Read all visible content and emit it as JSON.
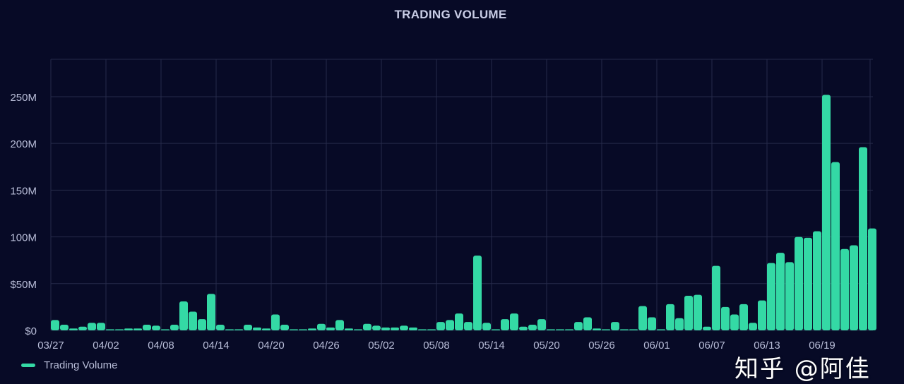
{
  "chart_data": {
    "type": "bar",
    "title": "TRADING VOLUME",
    "xlabel": "",
    "ylabel": "",
    "start_date": "03/27",
    "x_tick_labels": [
      "03/27",
      "04/02",
      "04/08",
      "04/14",
      "04/20",
      "04/26",
      "05/02",
      "05/08",
      "05/14",
      "05/20",
      "05/26",
      "06/01",
      "06/07",
      "06/13",
      "06/19"
    ],
    "y_tick_labels": [
      "$0",
      "$50M",
      "100M",
      "150M",
      "200M",
      "250M"
    ],
    "y_tick_values": [
      0,
      50,
      100,
      150,
      200,
      250
    ],
    "ylim": [
      0,
      290
    ],
    "grid": true,
    "legend_position": "bottom-left",
    "series": [
      {
        "name": "Trading Volume",
        "color": "#34d9a5",
        "unit": "M",
        "values": [
          11,
          6,
          2,
          4,
          8,
          8,
          0,
          1,
          2,
          2,
          6,
          5,
          1,
          6,
          31,
          20,
          12,
          39,
          6,
          0,
          0,
          6,
          3,
          2,
          17,
          6,
          0,
          0,
          2,
          7,
          3,
          11,
          2,
          1,
          7,
          5,
          3,
          3,
          5,
          3,
          0,
          0,
          9,
          11,
          18,
          9,
          80,
          8,
          0,
          12,
          18,
          4,
          6,
          12,
          1,
          0,
          0,
          9,
          14,
          2,
          0,
          9,
          0,
          0,
          26,
          14,
          0,
          28,
          13,
          37,
          38,
          4,
          69,
          25,
          17,
          28,
          8,
          32,
          72,
          83,
          73,
          100,
          99,
          106,
          252,
          180,
          87,
          91,
          196,
          109
        ]
      }
    ]
  },
  "legend": {
    "label": "Trading Volume"
  },
  "watermark": "知乎 @阿佳",
  "colors": {
    "background": "#070a26",
    "bar": "#34d9a5",
    "grid": "#262a4a",
    "text": "#c9cde6"
  }
}
